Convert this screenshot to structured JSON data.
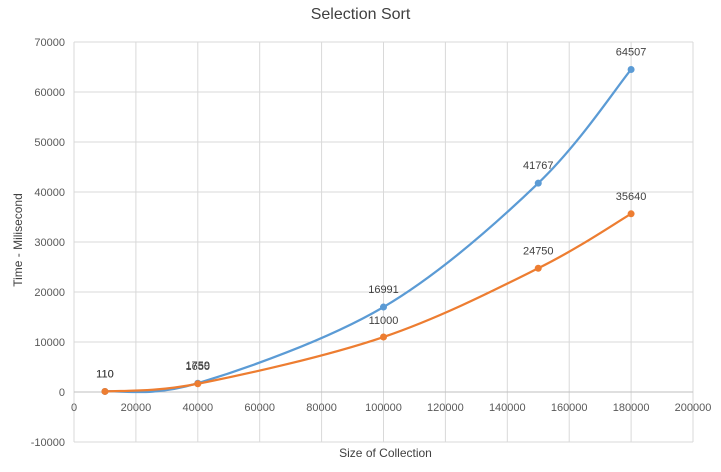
{
  "chart_data": {
    "type": "line",
    "title": "Selection Sort",
    "xlabel": "Size of Collection",
    "ylabel": "Time - Milisecond",
    "xlim": [
      0,
      200000
    ],
    "ylim": [
      -10000,
      70000
    ],
    "x_ticks": [
      0,
      20000,
      40000,
      60000,
      80000,
      100000,
      120000,
      140000,
      160000,
      180000,
      200000
    ],
    "y_ticks": [
      -10000,
      0,
      10000,
      20000,
      30000,
      40000,
      50000,
      60000,
      70000
    ],
    "grid": true,
    "smooth": true,
    "series": [
      {
        "color": "#5B9BD5",
        "points": [
          {
            "x": 10000,
            "y": 110
          },
          {
            "x": 40000,
            "y": 1759
          },
          {
            "x": 100000,
            "y": 16991
          },
          {
            "x": 150000,
            "y": 41767
          },
          {
            "x": 180000,
            "y": 64507
          }
        ]
      },
      {
        "color": "#ED7D31",
        "points": [
          {
            "x": 10000,
            "y": 110
          },
          {
            "x": 40000,
            "y": 1650
          },
          {
            "x": 100000,
            "y": 11000
          },
          {
            "x": 150000,
            "y": 24750
          },
          {
            "x": 180000,
            "y": 35640
          }
        ]
      }
    ]
  }
}
